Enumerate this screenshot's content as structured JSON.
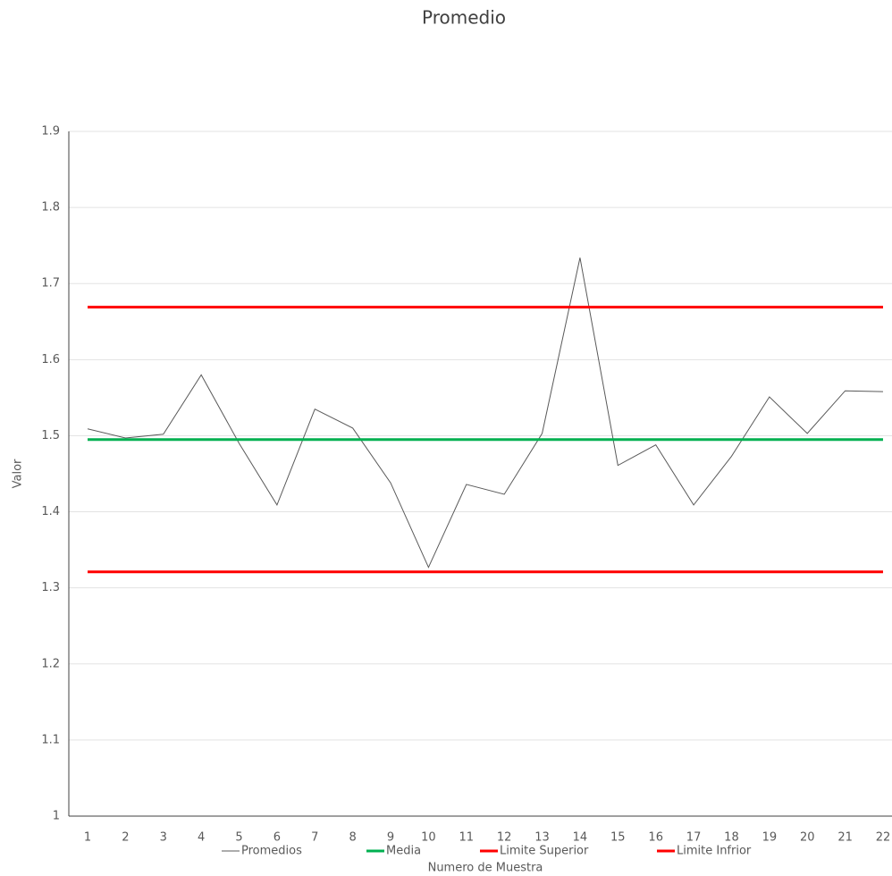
{
  "chart_data": {
    "type": "line",
    "title": "Promedio",
    "xlabel": "Numero de Muestra",
    "ylabel": "Valor",
    "categories": [
      "1",
      "2",
      "3",
      "4",
      "5",
      "6",
      "7",
      "8",
      "9",
      "10",
      "11",
      "12",
      "13",
      "14",
      "15",
      "16",
      "17",
      "18",
      "19",
      "20",
      "21",
      "22"
    ],
    "series": [
      {
        "name": "Promedios",
        "color": "#595959",
        "width": 1,
        "values": [
          1.509,
          1.497,
          1.502,
          1.58,
          1.49,
          1.409,
          1.535,
          1.51,
          1.438,
          1.327,
          1.436,
          1.423,
          1.503,
          1.734,
          1.461,
          1.488,
          1.409,
          1.473,
          1.551,
          1.503,
          1.559,
          1.558
        ]
      },
      {
        "name": "Media",
        "color": "#00b050",
        "width": 3,
        "values": [
          1.495,
          1.495,
          1.495,
          1.495,
          1.495,
          1.495,
          1.495,
          1.495,
          1.495,
          1.495,
          1.495,
          1.495,
          1.495,
          1.495,
          1.495,
          1.495,
          1.495,
          1.495,
          1.495,
          1.495,
          1.495,
          1.495
        ]
      },
      {
        "name": "Limite Superior",
        "color": "#ff0000",
        "width": 3,
        "values": [
          1.669,
          1.669,
          1.669,
          1.669,
          1.669,
          1.669,
          1.669,
          1.669,
          1.669,
          1.669,
          1.669,
          1.669,
          1.669,
          1.669,
          1.669,
          1.669,
          1.669,
          1.669,
          1.669,
          1.669,
          1.669,
          1.669
        ]
      },
      {
        "name": "Limite Infrior",
        "color": "#ff0000",
        "width": 3,
        "values": [
          1.321,
          1.321,
          1.321,
          1.321,
          1.321,
          1.321,
          1.321,
          1.321,
          1.321,
          1.321,
          1.321,
          1.321,
          1.321,
          1.321,
          1.321,
          1.321,
          1.321,
          1.321,
          1.321,
          1.321,
          1.321,
          1.321
        ]
      }
    ],
    "ylim": [
      1,
      1.9
    ],
    "yticks": [
      1,
      1.1,
      1.2,
      1.3,
      1.4,
      1.5,
      1.6,
      1.7,
      1.8,
      1.9
    ],
    "grid": true,
    "legend": "bottom"
  }
}
